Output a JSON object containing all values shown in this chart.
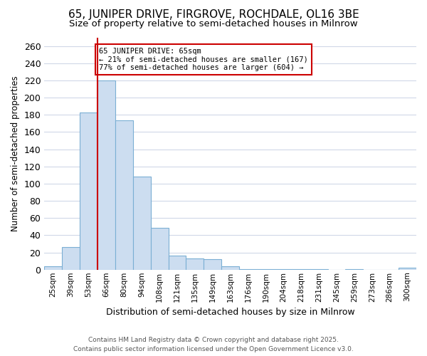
{
  "title_line1": "65, JUNIPER DRIVE, FIRGROVE, ROCHDALE, OL16 3BE",
  "title_line2": "Size of property relative to semi-detached houses in Milnrow",
  "xlabel": "Distribution of semi-detached houses by size in Milnrow",
  "ylabel": "Number of semi-detached properties",
  "footer_line1": "Contains HM Land Registry data © Crown copyright and database right 2025.",
  "footer_line2": "Contains public sector information licensed under the Open Government Licence v3.0.",
  "bin_labels": [
    "25sqm",
    "39sqm",
    "53sqm",
    "66sqm",
    "80sqm",
    "94sqm",
    "108sqm",
    "121sqm",
    "135sqm",
    "149sqm",
    "163sqm",
    "176sqm",
    "190sqm",
    "204sqm",
    "218sqm",
    "231sqm",
    "245sqm",
    "259sqm",
    "273sqm",
    "286sqm",
    "300sqm"
  ],
  "bar_values": [
    4,
    26,
    183,
    220,
    174,
    108,
    49,
    16,
    13,
    12,
    4,
    1,
    1,
    1,
    1,
    1,
    0,
    1,
    0,
    0,
    2
  ],
  "bar_color": "#ccddf0",
  "bar_edge_color": "#7bafd4",
  "highlight_bin_index": 3,
  "red_line_color": "#cc0000",
  "annotation_text": "65 JUNIPER DRIVE: 65sqm\n← 21% of semi-detached houses are smaller (167)\n77% of semi-detached houses are larger (604) →",
  "annotation_box_color": "#ffffff",
  "annotation_box_edge": "#cc0000",
  "ylim": [
    0,
    270
  ],
  "yticks": [
    0,
    20,
    40,
    60,
    80,
    100,
    120,
    140,
    160,
    180,
    200,
    220,
    240,
    260
  ],
  "bg_color": "#ffffff",
  "plot_bg_color": "#ffffff",
  "grid_color": "#d0d8e8",
  "title_fontsize": 11,
  "subtitle_fontsize": 9.5
}
